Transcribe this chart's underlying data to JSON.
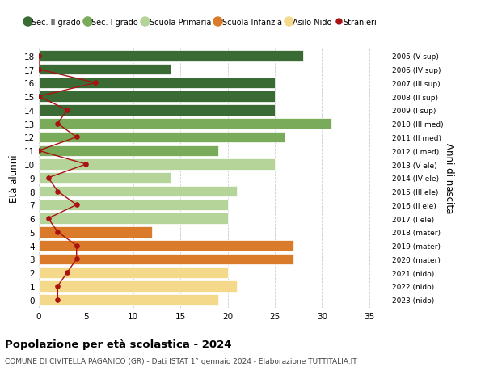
{
  "ages": [
    18,
    17,
    16,
    15,
    14,
    13,
    12,
    11,
    10,
    9,
    8,
    7,
    6,
    5,
    4,
    3,
    2,
    1,
    0
  ],
  "years": [
    "2005 (V sup)",
    "2006 (IV sup)",
    "2007 (III sup)",
    "2008 (II sup)",
    "2009 (I sup)",
    "2010 (III med)",
    "2011 (II med)",
    "2012 (I med)",
    "2013 (V ele)",
    "2014 (IV ele)",
    "2015 (III ele)",
    "2016 (II ele)",
    "2017 (I ele)",
    "2018 (mater)",
    "2019 (mater)",
    "2020 (mater)",
    "2021 (nido)",
    "2022 (nido)",
    "2023 (nido)"
  ],
  "bar_values": [
    28,
    14,
    25,
    25,
    25,
    31,
    26,
    19,
    25,
    14,
    21,
    20,
    20,
    12,
    27,
    27,
    20,
    21,
    19
  ],
  "bar_colors": [
    "#3a6b35",
    "#3a6b35",
    "#3a6b35",
    "#3a6b35",
    "#3a6b35",
    "#7aab5a",
    "#7aab5a",
    "#7aab5a",
    "#b5d49a",
    "#b5d49a",
    "#b5d49a",
    "#b5d49a",
    "#b5d49a",
    "#d97b2a",
    "#d97b2a",
    "#d97b2a",
    "#f5d98a",
    "#f5d98a",
    "#f5d98a"
  ],
  "stranieri_values": [
    0,
    0,
    6,
    0,
    3,
    2,
    4,
    0,
    5,
    1,
    2,
    4,
    1,
    2,
    4,
    4,
    3,
    2,
    2
  ],
  "stranieri_color": "#aa1111",
  "ylabel": "Età alunni",
  "ylabel_right": "Anni di nascita",
  "title": "Popolazione per età scolastica - 2024",
  "subtitle": "COMUNE DI CIVITELLA PAGANICO (GR) - Dati ISTAT 1° gennaio 2024 - Elaborazione TUTTITALIA.IT",
  "xlim": [
    0,
    37
  ],
  "xticks": [
    0,
    5,
    10,
    15,
    20,
    25,
    30,
    35
  ],
  "legend_labels": [
    "Sec. II grado",
    "Sec. I grado",
    "Scuola Primaria",
    "Scuola Infanzia",
    "Asilo Nido",
    "Stranieri"
  ],
  "legend_colors": [
    "#3a6b35",
    "#7aab5a",
    "#b5d49a",
    "#d97b2a",
    "#f5d98a",
    "#aa1111"
  ],
  "background_color": "#ffffff",
  "grid_color": "#cccccc",
  "bar_height": 0.8
}
